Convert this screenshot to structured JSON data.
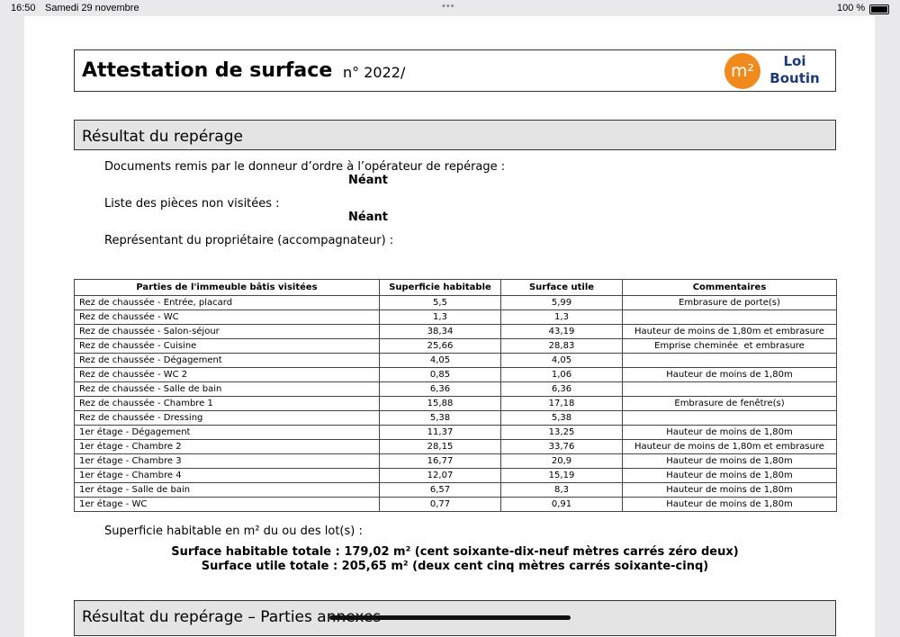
{
  "status_bar": {
    "time": "16:50",
    "date": "Samedi 29 novembre",
    "battery": "100 %"
  },
  "header": {
    "title": "Attestation de surface",
    "number": "n° 2022/",
    "logo": {
      "symbol": "m²",
      "line1": "Loi",
      "line2": "Boutin"
    }
  },
  "section": {
    "title": "Résultat du repérage"
  },
  "documents": {
    "label": "Documents remis par le donneur d’ordre à l’opérateur de repérage :",
    "value": "Néant"
  },
  "unvisited": {
    "label": "Liste des pièces non visitées :",
    "value": "Néant"
  },
  "representative": {
    "label": "Représentant du propriétaire (accompagnateur) :"
  },
  "table": {
    "headers": [
      "Parties de l'immeuble bâtis visitées",
      "Superficie habitable",
      "Surface utile",
      "Commentaires"
    ],
    "rows": [
      [
        "Rez de chaussée - Entrée, placard",
        "5,5",
        "5,99",
        "Embrasure de porte(s)"
      ],
      [
        "Rez de chaussée - WC",
        "1,3",
        "1,3",
        null
      ],
      [
        "Rez de chaussée - Salon-séjour",
        "38,34",
        "43,19",
        "Hauteur de moins de 1,80m et embrasure"
      ],
      [
        "Rez de chaussée - Cuisine",
        "25,66",
        "28,83",
        "Emprise cheminée  et embrasure"
      ],
      [
        "Rez de chaussée - Dégagement",
        "4,05",
        "4,05",
        null
      ],
      [
        "Rez de chaussée - WC 2",
        "0,85",
        "1,06",
        "Hauteur de moins de 1,80m"
      ],
      [
        "Rez de chaussée - Salle de bain",
        "6,36",
        "6,36",
        null
      ],
      [
        "Rez de chaussée - Chambre 1",
        "15,88",
        "17,18",
        "Embrasure de fenêtre(s)"
      ],
      [
        "Rez de chaussée - Dressing",
        "5,38",
        "5,38",
        null
      ],
      [
        "1er étage - Dégagement",
        "11,37",
        "13,25",
        "Hauteur de moins de 1,80m"
      ],
      [
        "1er étage - Chambre 2",
        "28,15",
        "33,76",
        "Hauteur de moins de 1,80m et embrasure"
      ],
      [
        "1er étage - Chambre 3",
        "16,77",
        "20,9",
        "Hauteur de moins de 1,80m"
      ],
      [
        "1er étage - Chambre 4",
        "12,07",
        "15,19",
        "Hauteur de moins de 1,80m"
      ],
      [
        "1er étage - Salle de bain",
        "6,57",
        "8,3",
        "Hauteur de moins de 1,80m"
      ],
      [
        "1er étage - WC",
        "0,77",
        "0,91",
        "Hauteur de moins de 1,80m"
      ]
    ]
  },
  "summary": {
    "label": "Superficie habitable en m² du ou des lot(s) :",
    "total_habitable": "Surface habitable totale : 179,02 m² (cent soixante-dix-neuf mètres carrés zéro deux)",
    "total_utile": "Surface utile totale : 205,65 m² (deux cent cinq mètres carrés soixante-cinq)"
  },
  "next_section": {
    "title": "Résultat du repérage – Parties annexes"
  }
}
